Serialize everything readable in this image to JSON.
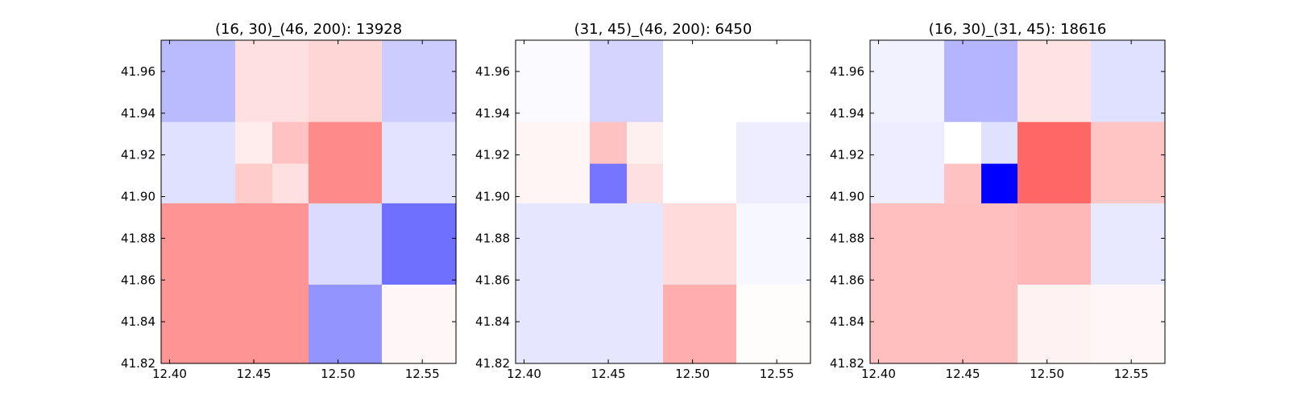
{
  "chart_data": [
    {
      "type": "heatmap",
      "title": "(16, 30)_(46, 200): 13928",
      "xlim": [
        12.395,
        12.57
      ],
      "ylim": [
        41.82,
        41.975
      ],
      "xticks": [
        "12.40",
        "12.45",
        "12.50",
        "12.55"
      ],
      "yticks": [
        "41.82",
        "41.84",
        "41.86",
        "41.88",
        "41.90",
        "41.92",
        "41.94",
        "41.96"
      ],
      "color_scale": {
        "negative": "#0000ff",
        "zero": "#ffffff",
        "positive": "#ff0000"
      },
      "cells": [
        {
          "x0": 12.395,
          "x1": 12.4825,
          "y0": 41.82,
          "y1": 41.897,
          "v": 0.42
        },
        {
          "x0": 12.4825,
          "x1": 12.526,
          "y0": 41.82,
          "y1": 41.858,
          "v": -0.42
        },
        {
          "x0": 12.526,
          "x1": 12.57,
          "y0": 41.82,
          "y1": 41.858,
          "v": 0.03
        },
        {
          "x0": 12.4825,
          "x1": 12.526,
          "y0": 41.858,
          "y1": 41.897,
          "v": -0.14
        },
        {
          "x0": 12.526,
          "x1": 12.57,
          "y0": 41.858,
          "y1": 41.897,
          "v": -0.56
        },
        {
          "x0": 12.395,
          "x1": 12.439,
          "y0": 41.897,
          "y1": 41.936,
          "v": -0.12
        },
        {
          "x0": 12.439,
          "x1": 12.461,
          "y0": 41.897,
          "y1": 41.916,
          "v": 0.2
        },
        {
          "x0": 12.461,
          "x1": 12.4825,
          "y0": 41.897,
          "y1": 41.916,
          "v": 0.12
        },
        {
          "x0": 12.439,
          "x1": 12.461,
          "y0": 41.916,
          "y1": 41.936,
          "v": 0.07
        },
        {
          "x0": 12.461,
          "x1": 12.4825,
          "y0": 41.916,
          "y1": 41.936,
          "v": 0.24
        },
        {
          "x0": 12.4825,
          "x1": 12.526,
          "y0": 41.897,
          "y1": 41.936,
          "v": 0.46
        },
        {
          "x0": 12.526,
          "x1": 12.57,
          "y0": 41.897,
          "y1": 41.936,
          "v": -0.11
        },
        {
          "x0": 12.395,
          "x1": 12.439,
          "y0": 41.936,
          "y1": 41.975,
          "v": -0.27
        },
        {
          "x0": 12.439,
          "x1": 12.4825,
          "y0": 41.936,
          "y1": 41.975,
          "v": 0.12
        },
        {
          "x0": 12.4825,
          "x1": 12.526,
          "y0": 41.936,
          "y1": 41.975,
          "v": 0.16
        },
        {
          "x0": 12.526,
          "x1": 12.57,
          "y0": 41.936,
          "y1": 41.975,
          "v": -0.2
        }
      ]
    },
    {
      "type": "heatmap",
      "title": "(31, 45)_(46, 200): 6450",
      "xlim": [
        12.395,
        12.57
      ],
      "ylim": [
        41.82,
        41.975
      ],
      "xticks": [
        "12.40",
        "12.45",
        "12.50",
        "12.55"
      ],
      "yticks": [
        "41.82",
        "41.84",
        "41.86",
        "41.88",
        "41.90",
        "41.92",
        "41.94",
        "41.96"
      ],
      "color_scale": {
        "negative": "#0000ff",
        "zero": "#ffffff",
        "positive": "#ff0000"
      },
      "cells": [
        {
          "x0": 12.395,
          "x1": 12.4825,
          "y0": 41.82,
          "y1": 41.897,
          "v": -0.1
        },
        {
          "x0": 12.4825,
          "x1": 12.526,
          "y0": 41.82,
          "y1": 41.858,
          "v": 0.32
        },
        {
          "x0": 12.526,
          "x1": 12.57,
          "y0": 41.82,
          "y1": 41.858,
          "v": 0.01
        },
        {
          "x0": 12.4825,
          "x1": 12.526,
          "y0": 41.858,
          "y1": 41.897,
          "v": 0.14
        },
        {
          "x0": 12.526,
          "x1": 12.57,
          "y0": 41.858,
          "y1": 41.897,
          "v": -0.03
        },
        {
          "x0": 12.395,
          "x1": 12.439,
          "y0": 41.897,
          "y1": 41.936,
          "v": 0.04
        },
        {
          "x0": 12.439,
          "x1": 12.461,
          "y0": 41.897,
          "y1": 41.916,
          "v": -0.54
        },
        {
          "x0": 12.461,
          "x1": 12.4825,
          "y0": 41.897,
          "y1": 41.916,
          "v": 0.12
        },
        {
          "x0": 12.439,
          "x1": 12.461,
          "y0": 41.916,
          "y1": 41.936,
          "v": 0.24
        },
        {
          "x0": 12.461,
          "x1": 12.4825,
          "y0": 41.916,
          "y1": 41.936,
          "v": 0.06
        },
        {
          "x0": 12.4825,
          "x1": 12.526,
          "y0": 41.897,
          "y1": 41.936,
          "v": 0.0
        },
        {
          "x0": 12.526,
          "x1": 12.57,
          "y0": 41.897,
          "y1": 41.936,
          "v": -0.07
        },
        {
          "x0": 12.395,
          "x1": 12.439,
          "y0": 41.936,
          "y1": 41.975,
          "v": -0.02
        },
        {
          "x0": 12.439,
          "x1": 12.4825,
          "y0": 41.936,
          "y1": 41.975,
          "v": -0.17
        },
        {
          "x0": 12.4825,
          "x1": 12.526,
          "y0": 41.936,
          "y1": 41.975,
          "v": 0.0
        },
        {
          "x0": 12.526,
          "x1": 12.57,
          "y0": 41.936,
          "y1": 41.975,
          "v": 0.0
        }
      ]
    },
    {
      "type": "heatmap",
      "title": "(16, 30)_(31, 45): 18616",
      "xlim": [
        12.395,
        12.57
      ],
      "ylim": [
        41.82,
        41.975
      ],
      "xticks": [
        "12.40",
        "12.45",
        "12.50",
        "12.55"
      ],
      "yticks": [
        "41.82",
        "41.84",
        "41.86",
        "41.88",
        "41.90",
        "41.92",
        "41.94",
        "41.96"
      ],
      "color_scale": {
        "negative": "#0000ff",
        "zero": "#ffffff",
        "positive": "#ff0000"
      },
      "cells": [
        {
          "x0": 12.395,
          "x1": 12.4825,
          "y0": 41.82,
          "y1": 41.897,
          "v": 0.25
        },
        {
          "x0": 12.4825,
          "x1": 12.526,
          "y0": 41.82,
          "y1": 41.858,
          "v": 0.05
        },
        {
          "x0": 12.526,
          "x1": 12.57,
          "y0": 41.82,
          "y1": 41.858,
          "v": 0.03
        },
        {
          "x0": 12.4825,
          "x1": 12.526,
          "y0": 41.858,
          "y1": 41.897,
          "v": 0.28
        },
        {
          "x0": 12.526,
          "x1": 12.57,
          "y0": 41.858,
          "y1": 41.897,
          "v": -0.09
        },
        {
          "x0": 12.395,
          "x1": 12.439,
          "y0": 41.897,
          "y1": 41.936,
          "v": -0.07
        },
        {
          "x0": 12.439,
          "x1": 12.461,
          "y0": 41.897,
          "y1": 41.916,
          "v": 0.24
        },
        {
          "x0": 12.461,
          "x1": 12.4825,
          "y0": 41.897,
          "y1": 41.916,
          "v": -1.0
        },
        {
          "x0": 12.439,
          "x1": 12.461,
          "y0": 41.916,
          "y1": 41.936,
          "v": 0.0
        },
        {
          "x0": 12.461,
          "x1": 12.4825,
          "y0": 41.916,
          "y1": 41.936,
          "v": -0.12
        },
        {
          "x0": 12.4825,
          "x1": 12.526,
          "y0": 41.897,
          "y1": 41.936,
          "v": 0.6
        },
        {
          "x0": 12.526,
          "x1": 12.57,
          "y0": 41.897,
          "y1": 41.936,
          "v": 0.23
        },
        {
          "x0": 12.395,
          "x1": 12.439,
          "y0": 41.936,
          "y1": 41.975,
          "v": -0.05
        },
        {
          "x0": 12.439,
          "x1": 12.4825,
          "y0": 41.936,
          "y1": 41.975,
          "v": -0.29
        },
        {
          "x0": 12.4825,
          "x1": 12.526,
          "y0": 41.936,
          "y1": 41.975,
          "v": 0.11
        },
        {
          "x0": 12.526,
          "x1": 12.57,
          "y0": 41.936,
          "y1": 41.975,
          "v": -0.12
        }
      ]
    }
  ]
}
